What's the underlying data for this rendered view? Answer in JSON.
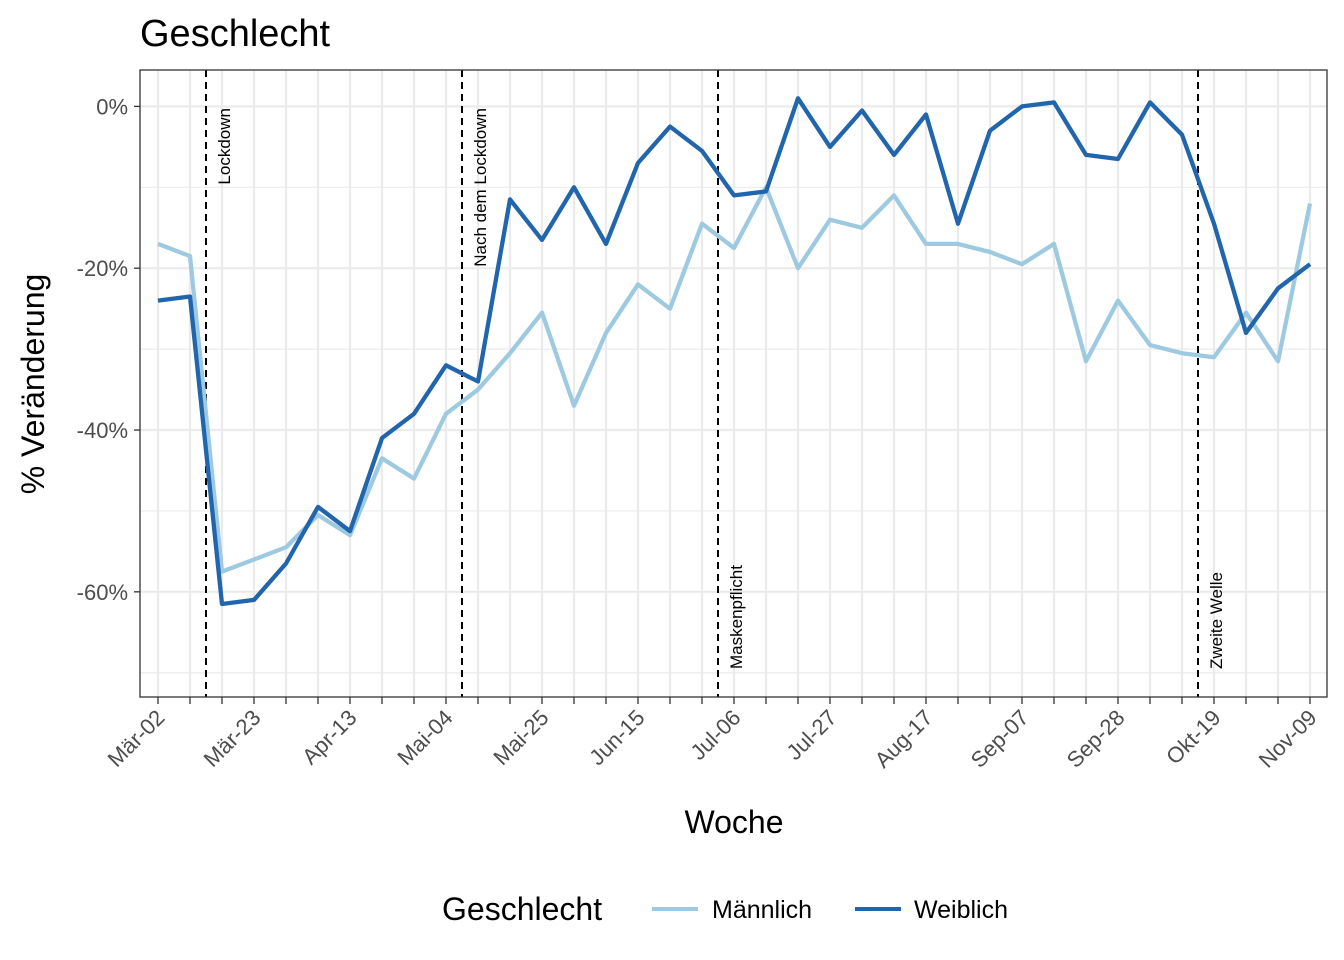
{
  "chart_data": {
    "type": "line",
    "title": "Geschlecht",
    "xlabel": "Woche",
    "ylabel": "% Veränderung",
    "x": [
      "Mär-02",
      "Mär-09",
      "Mär-16",
      "Mär-23",
      "Mär-30",
      "Apr-06",
      "Apr-13",
      "Apr-20",
      "Apr-27",
      "Mai-04",
      "Mai-11",
      "Mai-18",
      "Mai-25",
      "Jun-01",
      "Jun-08",
      "Jun-15",
      "Jun-22",
      "Jun-29",
      "Jul-06",
      "Jul-13",
      "Jul-20",
      "Jul-27",
      "Aug-03",
      "Aug-10",
      "Aug-17",
      "Aug-24",
      "Aug-31",
      "Sep-07",
      "Sep-14",
      "Sep-21",
      "Sep-28",
      "Okt-05",
      "Okt-12",
      "Okt-19",
      "Okt-26",
      "Nov-02",
      "Nov-09"
    ],
    "x_tick_labels": [
      "Mär-02",
      "Mär-23",
      "Apr-13",
      "Mai-04",
      "Mai-25",
      "Jun-15",
      "Jul-06",
      "Jul-27",
      "Aug-17",
      "Sep-07",
      "Sep-28",
      "Okt-19",
      "Nov-09"
    ],
    "ylim": [
      -73,
      4.5
    ],
    "y_ticks": [
      0,
      -20,
      -40,
      -60
    ],
    "y_tick_labels": [
      "0%",
      "-20%",
      "-40%",
      "-60%"
    ],
    "grid": true,
    "series": [
      {
        "name": "Männlich",
        "color": "#9ecae1",
        "values": [
          -17,
          -18.5,
          -57.5,
          -56,
          -54.5,
          -50.5,
          -53,
          -43.5,
          -46,
          -38,
          -35,
          -30.5,
          -25.5,
          -37,
          -28,
          -22,
          -25,
          -14.5,
          -17.5,
          -10,
          -20,
          -14,
          -15,
          -11,
          -17,
          -17,
          -18,
          -19.5,
          -17,
          -31.5,
          -24,
          -29.5,
          -30.5,
          -31,
          -25.5,
          -31.5,
          -12
        ]
      },
      {
        "name": "Weiblich",
        "color": "#2166ac",
        "values": [
          -24,
          -23.5,
          -61.5,
          -61,
          -56.5,
          -49.5,
          -52.5,
          -41,
          -38,
          -32,
          -34,
          -11.5,
          -16.5,
          -10,
          -17,
          -7,
          -2.5,
          -5.5,
          -11,
          -10.5,
          1,
          -5,
          -0.5,
          -6,
          -1,
          -14.5,
          -3,
          0,
          0.5,
          -6,
          -6.5,
          0.5,
          -3.5,
          -14.5,
          -28,
          -22.5,
          -19.5
        ]
      }
    ],
    "events": [
      {
        "label": "Lockdown",
        "x": "Mär-16",
        "offset_weeks": -0.5
      },
      {
        "label": "Nach dem Lockdown",
        "x": "Mai-11",
        "offset_weeks": -0.5
      },
      {
        "label": "Maskenpflicht",
        "x": "Jul-06",
        "offset_weeks": -0.5
      },
      {
        "label": "Zweite Welle",
        "x": "Okt-19",
        "offset_weeks": -0.5
      }
    ],
    "legend": {
      "title": "Geschlecht",
      "position": "bottom"
    }
  }
}
